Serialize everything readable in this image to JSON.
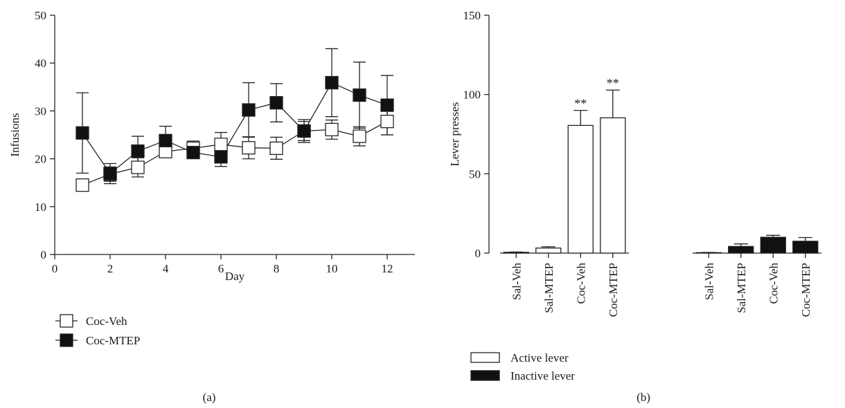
{
  "chart_data": [
    {
      "type": "line",
      "panel_label": "(a)",
      "xlabel": "Day",
      "ylabel": "Infusions",
      "xlim": [
        0,
        13
      ],
      "ylim": [
        0,
        50
      ],
      "xticks": [
        "0",
        "2",
        "4",
        "6",
        "8",
        "10",
        "12"
      ],
      "yticks": [
        "0",
        "10",
        "20",
        "30",
        "40",
        "50"
      ],
      "grid": false,
      "legend_position": "below-left",
      "series": [
        {
          "name": "Coc-Veh",
          "marker": "open-square",
          "fill": "#ffffff",
          "x": [
            1,
            2,
            3,
            4,
            5,
            6,
            7,
            8,
            9,
            10,
            11,
            12
          ],
          "y": [
            14.5,
            16.8,
            18.2,
            21.5,
            22.2,
            23.0,
            22.3,
            22.2,
            25.8,
            26.1,
            24.7,
            27.8
          ],
          "error": [
            0,
            1.5,
            2.0,
            1.0,
            1.5,
            2.5,
            2.3,
            2.3,
            2.0,
            2.0,
            2.0,
            2.8
          ]
        },
        {
          "name": "Coc-MTEP",
          "marker": "filled-square",
          "fill": "#111111",
          "x": [
            1,
            2,
            3,
            4,
            5,
            6,
            7,
            8,
            9,
            10,
            11,
            12
          ],
          "y": [
            25.4,
            16.9,
            21.6,
            23.8,
            21.3,
            20.4,
            30.2,
            31.7,
            25.8,
            35.9,
            33.3,
            31.2
          ],
          "error": [
            8.4,
            2.1,
            3.1,
            3.0,
            1.2,
            2.0,
            5.7,
            4.0,
            2.4,
            7.1,
            6.9,
            6.2
          ]
        }
      ]
    },
    {
      "type": "bar",
      "panel_label": "(b)",
      "ylabel": "Lever presses",
      "ylim": [
        0,
        150
      ],
      "yticks": [
        "0",
        "50",
        "100",
        "150"
      ],
      "grid": false,
      "legend_position": "below-left",
      "groups": [
        {
          "name": "Active lever",
          "fill": "#ffffff",
          "categories": [
            "Sal-Veh",
            "Sal-MTEP",
            "Coc-Veh",
            "Coc-MTEP"
          ],
          "values": [
            0.5,
            3.2,
            80.5,
            85.3
          ],
          "error": [
            0.2,
            0.8,
            9.5,
            17.5
          ],
          "annotations": [
            "",
            "",
            "**",
            "**"
          ]
        },
        {
          "name": "Inactive lever",
          "fill": "#111111",
          "categories": [
            "Sal-Veh",
            "Sal-MTEP",
            "Coc-Veh",
            "Coc-MTEP"
          ],
          "values": [
            0.3,
            4.2,
            10.0,
            7.5
          ],
          "error": [
            0.1,
            1.6,
            1.2,
            2.3
          ],
          "annotations": [
            "",
            "",
            "",
            ""
          ]
        }
      ]
    }
  ]
}
